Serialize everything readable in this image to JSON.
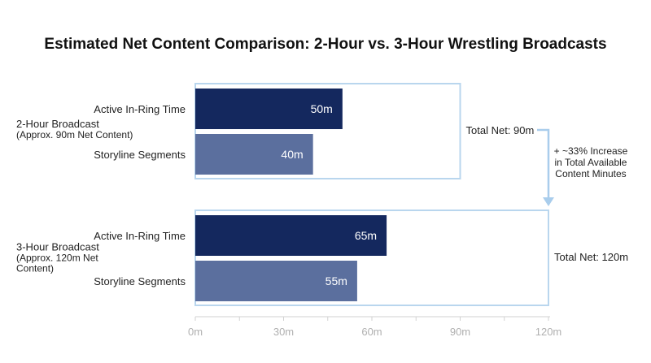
{
  "chart_data": {
    "type": "bar",
    "orientation": "horizontal",
    "title": "Estimated Net Content Comparison: 2-Hour vs. 3-Hour Wrestling Broadcasts",
    "xlabel": "",
    "ylabel": "",
    "xlim": [
      0,
      120
    ],
    "ticks": [
      {
        "value": 0,
        "label": "0m"
      },
      {
        "value": 30,
        "label": "30m"
      },
      {
        "value": 60,
        "label": "60m"
      },
      {
        "value": 90,
        "label": "90m"
      },
      {
        "value": 120,
        "label": "120m"
      }
    ],
    "grid": false,
    "groups": [
      {
        "label_lines": [
          "2-Hour Broadcast",
          "(Approx. 90m Net Content)"
        ],
        "box_max": 90,
        "total_label": "Total Net: 90m",
        "bars": [
          {
            "category": "Active In-Ring Time",
            "value": 50,
            "label": "50m",
            "color": "#14285e"
          },
          {
            "category": "Storyline Segments",
            "value": 40,
            "label": "40m",
            "color": "#5b6f9e"
          }
        ]
      },
      {
        "label_lines": [
          "3-Hour Broadcast",
          "(Approx. 120m Net",
          "Content)"
        ],
        "box_max": 120,
        "total_label": "Total Net: 120m",
        "bars": [
          {
            "category": "Active In-Ring Time",
            "value": 65,
            "label": "65m",
            "color": "#14285e"
          },
          {
            "category": "Storyline Segments",
            "value": 55,
            "label": "55m",
            "color": "#5b6f9e"
          }
        ]
      }
    ],
    "annotation_lines": [
      "+ ~33% Increase",
      "in Total Available",
      "Content Minutes"
    ],
    "colors": {
      "box": "#b9d6ee",
      "arrow": "#a9cdec",
      "axis": "#d2d2d2"
    }
  }
}
